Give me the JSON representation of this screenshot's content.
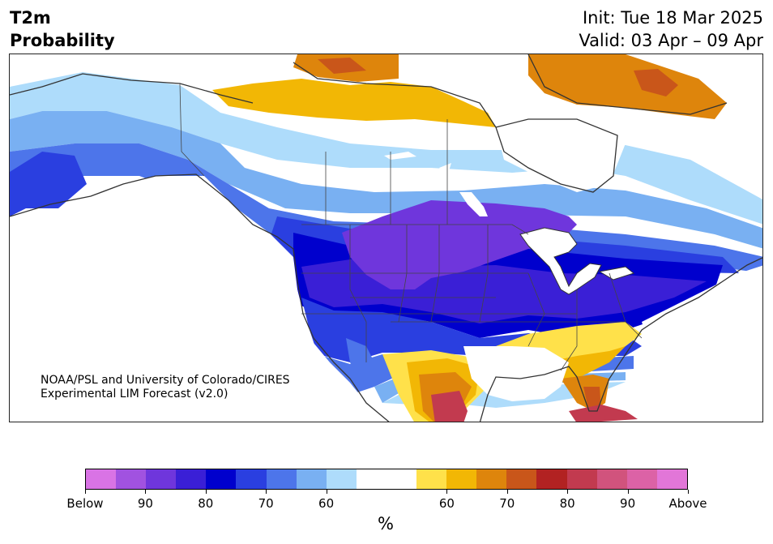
{
  "header": {
    "variable": "T2m",
    "product": "Probability",
    "init": "Init: Tue 18 Mar 2025",
    "valid": "Valid: 03 Apr – 09 Apr"
  },
  "credit": {
    "line1": "NOAA/PSL and University of Colorado/CIRES",
    "line2": "Experimental LIM Forecast (v2.0)"
  },
  "colorbar": {
    "colors": [
      "#d973e5",
      "#a152e0",
      "#6f36dc",
      "#3a1fd6",
      "#0000cd",
      "#2a3fe0",
      "#4d75ea",
      "#79b0f2",
      "#aedcfb",
      "#ffffff",
      "#ffffff",
      "#ffe14a",
      "#f2b705",
      "#de850c",
      "#c9561a",
      "#b22222",
      "#c23a4f",
      "#d1537d",
      "#dc62a6",
      "#e276d8"
    ],
    "tick_labels": [
      "Below",
      "90",
      "80",
      "70",
      "60",
      "60",
      "70",
      "80",
      "90",
      "Above"
    ],
    "unit": "%"
  }
}
